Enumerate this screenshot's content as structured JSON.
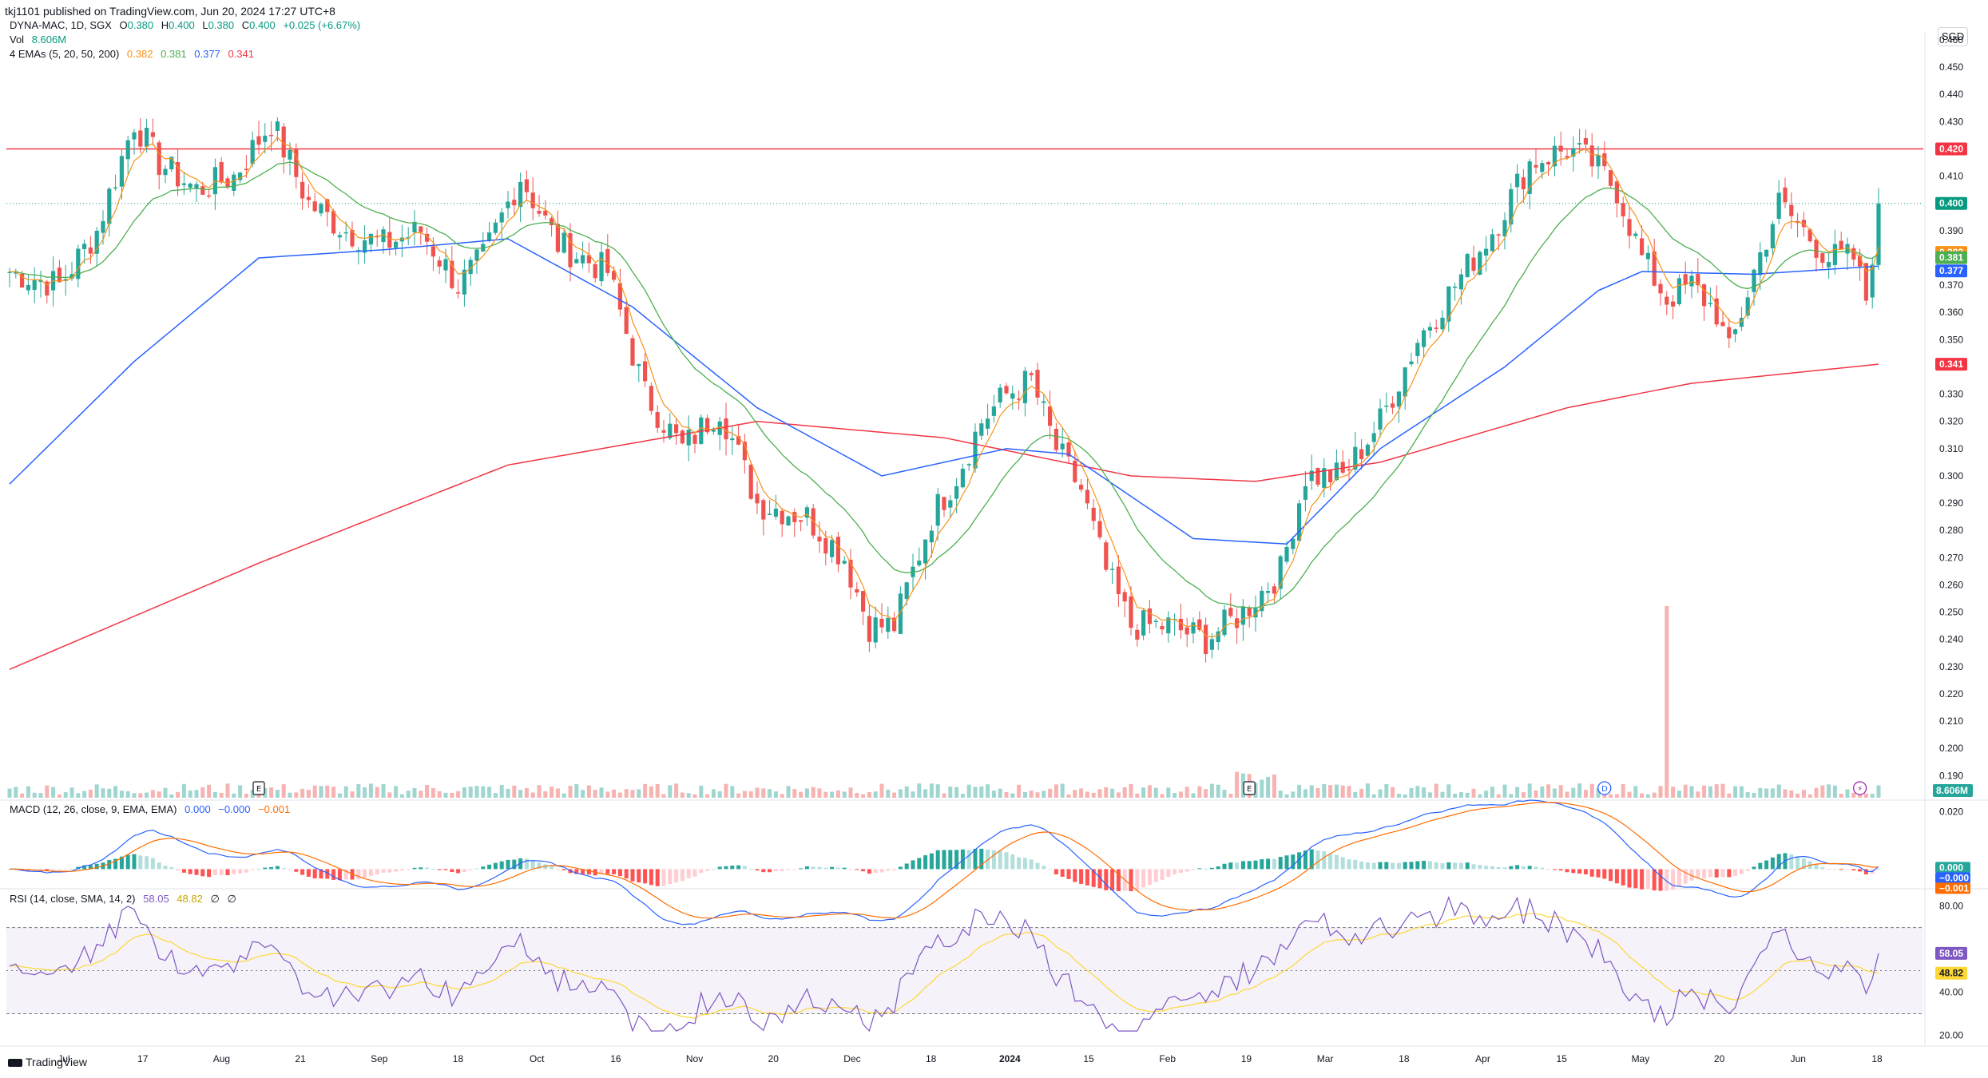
{
  "header": {
    "published_text": "tkj1101 published on TradingView.com, Jun 20, 2024 17:27 UTC+8"
  },
  "legend": {
    "symbol": "DYNA-MAC, 1D, SGX",
    "ohlc": {
      "O": "0.380",
      "H": "0.400",
      "L": "0.380",
      "C": "0.400",
      "change": "+0.025 (+6.67%)"
    },
    "vol_label": "Vol",
    "vol_value": "8.606M",
    "ema_label": "4 EMAs (5, 20, 50, 200)",
    "ema_values": [
      "0.382",
      "0.381",
      "0.377",
      "0.341"
    ]
  },
  "macd_legend": {
    "label": "MACD (12, 26, close, 9, EMA, EMA)",
    "values": [
      "0.000",
      "−0.000",
      "−0.001"
    ]
  },
  "rsi_legend": {
    "label": "RSI (14, close, SMA, 14, 2)",
    "values": [
      "58.05",
      "48.82",
      "∅",
      "∅"
    ]
  },
  "currency": "SGD",
  "footer": {
    "brand": "TradingView"
  },
  "colors": {
    "up": "#26a69a",
    "down": "#ef5350",
    "ema5": "#f7931a",
    "ema20": "#4caf50",
    "ema50": "#2962ff",
    "ema200": "#f23645",
    "resistance": "#f23645",
    "macd": "#2962ff",
    "signal": "#ff6d00",
    "rsi": "#7e57c2",
    "rsi_ma": "#fdd835",
    "text": "#131722"
  },
  "chart_data": {
    "type": "candlestick",
    "price_axis": {
      "ticks": [
        "0.460",
        "0.450",
        "0.440",
        "0.430",
        "0.420",
        "0.410",
        "0.400",
        "0.390",
        "0.380",
        "0.370",
        "0.360",
        "0.350",
        "0.340",
        "0.330",
        "0.320",
        "0.310",
        "0.300",
        "0.290",
        "0.280",
        "0.270",
        "0.260",
        "0.250",
        "0.240",
        "0.230",
        "0.220",
        "0.210",
        "0.200",
        "0.190"
      ],
      "ylim": [
        0.186,
        0.46
      ]
    },
    "x_ticks": [
      "Jul",
      "17",
      "Aug",
      "21",
      "Sep",
      "18",
      "Oct",
      "16",
      "Nov",
      "20",
      "Dec",
      "18",
      "2024",
      "15",
      "Feb",
      "19",
      "Mar",
      "18",
      "Apr",
      "15",
      "May",
      "20",
      "Jun",
      "18"
    ],
    "resistance_line": {
      "value": 0.42,
      "label": "0.420"
    },
    "last_price": {
      "value": 0.4,
      "label": "0.400"
    },
    "price_labels": [
      {
        "label": "0.420",
        "value": 0.42,
        "color": "#f23645"
      },
      {
        "label": "0.400",
        "value": 0.4,
        "color": "#089981"
      },
      {
        "label": "0.382",
        "value": 0.382,
        "color": "#f7931a"
      },
      {
        "label": "0.381",
        "value": 0.381,
        "color": "#4caf50"
      },
      {
        "label": "0.377",
        "value": 0.377,
        "color": "#2962ff"
      },
      {
        "label": "0.341",
        "value": 0.341,
        "color": "#f23645"
      }
    ],
    "price_anchors": [
      [
        0,
        0.375
      ],
      [
        8,
        0.37
      ],
      [
        14,
        0.39
      ],
      [
        20,
        0.43
      ],
      [
        24,
        0.415
      ],
      [
        30,
        0.405
      ],
      [
        36,
        0.41
      ],
      [
        42,
        0.43
      ],
      [
        48,
        0.4
      ],
      [
        54,
        0.39
      ],
      [
        60,
        0.385
      ],
      [
        66,
        0.39
      ],
      [
        72,
        0.37
      ],
      [
        76,
        0.38
      ],
      [
        82,
        0.41
      ],
      [
        88,
        0.385
      ],
      [
        96,
        0.375
      ],
      [
        102,
        0.33
      ],
      [
        108,
        0.31
      ],
      [
        114,
        0.325
      ],
      [
        120,
        0.29
      ],
      [
        128,
        0.285
      ],
      [
        134,
        0.27
      ],
      [
        138,
        0.245
      ],
      [
        142,
        0.245
      ],
      [
        148,
        0.285
      ],
      [
        152,
        0.3
      ],
      [
        156,
        0.32
      ],
      [
        160,
        0.33
      ],
      [
        164,
        0.335
      ],
      [
        168,
        0.31
      ],
      [
        172,
        0.295
      ],
      [
        176,
        0.265
      ],
      [
        180,
        0.245
      ],
      [
        186,
        0.245
      ],
      [
        192,
        0.24
      ],
      [
        198,
        0.25
      ],
      [
        204,
        0.265
      ],
      [
        208,
        0.3
      ],
      [
        214,
        0.3
      ],
      [
        220,
        0.32
      ],
      [
        226,
        0.35
      ],
      [
        232,
        0.37
      ],
      [
        238,
        0.39
      ],
      [
        244,
        0.415
      ],
      [
        250,
        0.42
      ],
      [
        254,
        0.415
      ],
      [
        258,
        0.405
      ],
      [
        262,
        0.38
      ],
      [
        266,
        0.365
      ],
      [
        270,
        0.37
      ],
      [
        274,
        0.36
      ],
      [
        276,
        0.345
      ],
      [
        280,
        0.375
      ],
      [
        284,
        0.4
      ],
      [
        288,
        0.39
      ],
      [
        292,
        0.38
      ],
      [
        296,
        0.38
      ],
      [
        298,
        0.365
      ],
      [
        300,
        0.4
      ]
    ],
    "ema200_anchors": [
      [
        0,
        0.229
      ],
      [
        40,
        0.268
      ],
      [
        80,
        0.304
      ],
      [
        120,
        0.32
      ],
      [
        150,
        0.314
      ],
      [
        180,
        0.3
      ],
      [
        200,
        0.298
      ],
      [
        220,
        0.305
      ],
      [
        250,
        0.325
      ],
      [
        270,
        0.334
      ],
      [
        300,
        0.341
      ]
    ],
    "ema50_anchors": [
      [
        0,
        0.297
      ],
      [
        20,
        0.342
      ],
      [
        40,
        0.38
      ],
      [
        60,
        0.383
      ],
      [
        80,
        0.387
      ],
      [
        100,
        0.362
      ],
      [
        120,
        0.325
      ],
      [
        140,
        0.3
      ],
      [
        160,
        0.31
      ],
      [
        170,
        0.308
      ],
      [
        190,
        0.277
      ],
      [
        205,
        0.275
      ],
      [
        220,
        0.31
      ],
      [
        240,
        0.34
      ],
      [
        255,
        0.368
      ],
      [
        262,
        0.375
      ],
      [
        280,
        0.374
      ],
      [
        300,
        0.377
      ]
    ],
    "volume": {
      "label": "8.606M",
      "spike_index": 266
    },
    "macd": {
      "ylim": [
        -0.006,
        0.024
      ],
      "ticks": [
        "0.020"
      ],
      "labels": [
        "0.000",
        "−0.000",
        "−0.001"
      ]
    },
    "rsi": {
      "ylim": [
        15,
        88
      ],
      "ticks": [
        "80.00",
        "40.00",
        "20.00"
      ],
      "upper": 70,
      "lower": 30,
      "labels": [
        "58.05",
        "48.82"
      ]
    },
    "event_markers": [
      {
        "label": "E",
        "index": 40
      },
      {
        "label": "E",
        "index": 199
      },
      {
        "label": "D",
        "index": 256
      },
      {
        "label": "⚡",
        "index": 297
      }
    ]
  }
}
